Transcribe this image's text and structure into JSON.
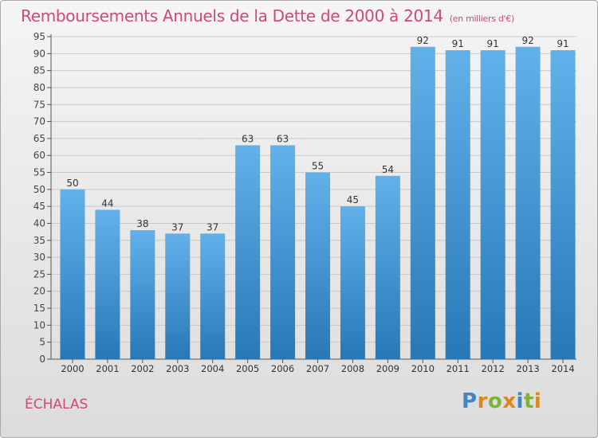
{
  "header": {
    "title": "Remboursements Annuels de la Dette de 2000 à 2014",
    "unit": "(en milliers d'€)"
  },
  "footer": {
    "commune": "ÉCHALAS",
    "logo_text": "Proxiti"
  },
  "colors": {
    "bar_light": "#63b1ea",
    "bar_dark": "#2878b8",
    "title": "#d0477a",
    "grid": "#c8c8c8"
  },
  "chart_data": {
    "type": "bar",
    "title": "Remboursements Annuels de la Dette de 2000 à 2014 (en milliers d'€)",
    "xlabel": "",
    "ylabel": "",
    "categories": [
      "2000",
      "2001",
      "2002",
      "2003",
      "2004",
      "2005",
      "2006",
      "2007",
      "2008",
      "2009",
      "2010",
      "2011",
      "2012",
      "2013",
      "2014"
    ],
    "values": [
      50,
      44,
      38,
      37,
      37,
      63,
      63,
      55,
      45,
      54,
      92,
      91,
      91,
      92,
      91
    ],
    "ylim": [
      0,
      95
    ],
    "yticks": [
      0,
      5,
      10,
      15,
      20,
      25,
      30,
      35,
      40,
      45,
      50,
      55,
      60,
      65,
      70,
      75,
      80,
      85,
      90,
      95
    ],
    "grid": true,
    "legend": "none"
  }
}
